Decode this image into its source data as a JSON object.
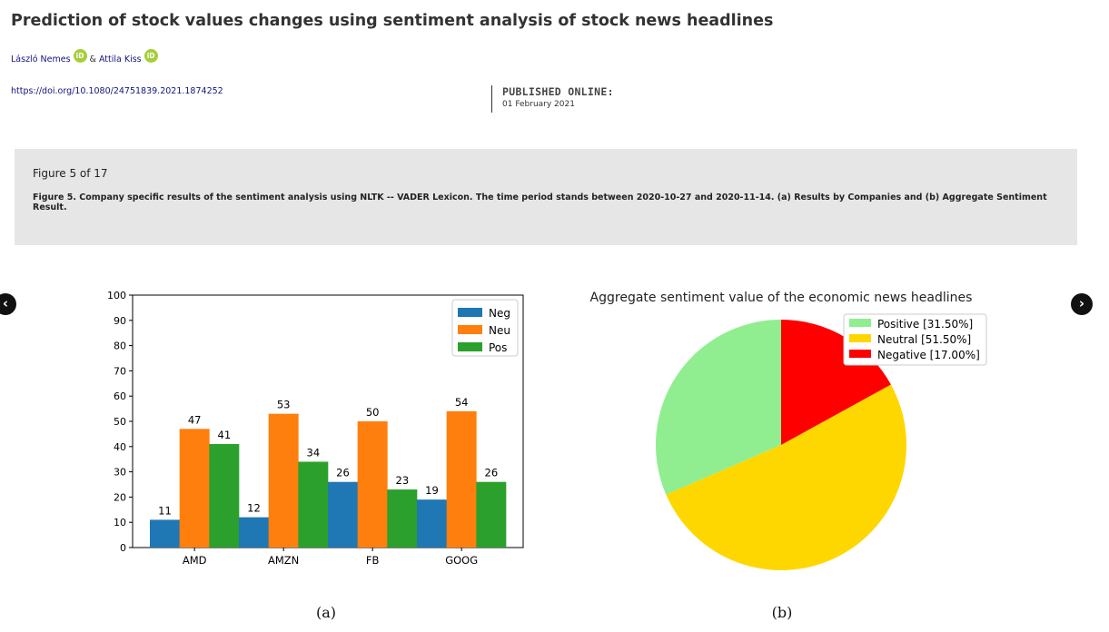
{
  "article": {
    "title": "Prediction of stock values changes using sentiment analysis of stock news headlines",
    "authors": [
      {
        "name": "László Nemes",
        "orcid_badge": "iD"
      },
      {
        "name": "Attila Kiss",
        "orcid_badge": "iD"
      }
    ],
    "author_separator": "&",
    "doi_url": "https://doi.org/10.1080/24751839.2021.1874252",
    "published_label": "PUBLISHED ONLINE:",
    "published_date": "01 February 2021"
  },
  "figure": {
    "counter": "Figure 5 of 17",
    "caption": "Figure 5. Company specific results of the sentiment analysis using NLTK -- VADER Lexicon. The time period stands between 2020-10-27 and 2020-11-14. (a) Results by Companies and (b) Aggregate Sentiment Result.",
    "sub_label_a": "(a)",
    "sub_label_b": "(b)"
  },
  "nav": {
    "prev_glyph": "‹",
    "prev_icon": "chevron-left-icon",
    "next_glyph": "›",
    "next_icon": "chevron-right-icon"
  },
  "chart_data": [
    {
      "type": "bar",
      "title": "",
      "categories": [
        "AMD",
        "AMZN",
        "FB",
        "GOOG"
      ],
      "series": [
        {
          "name": "Neg",
          "values": [
            11,
            12,
            26,
            19
          ],
          "color": "#1f77b4"
        },
        {
          "name": "Neu",
          "values": [
            47,
            53,
            50,
            54
          ],
          "color": "#ff7f0e"
        },
        {
          "name": "Pos",
          "values": [
            41,
            34,
            23,
            26
          ],
          "color": "#2ca02c"
        }
      ],
      "data_labels": true,
      "xlabel": "",
      "ylabel": "",
      "ylim": [
        0,
        100
      ],
      "yticks": [
        0,
        10,
        20,
        30,
        40,
        50,
        60,
        70,
        80,
        90,
        100
      ],
      "grid": false,
      "legend": "top-right"
    },
    {
      "type": "pie",
      "title": "Aggregate sentiment value of the economic news headlines",
      "slices": [
        {
          "label": "Positive [31.50%]",
          "value": 31.5,
          "color": "#90ee90"
        },
        {
          "label": "Neutral [51.50%]",
          "value": 51.5,
          "color": "#ffd700"
        },
        {
          "label": "Negative [17.00%]",
          "value": 17.0,
          "color": "#ff0000"
        }
      ],
      "start_angle_deg": 90,
      "legend": "top-right"
    }
  ]
}
